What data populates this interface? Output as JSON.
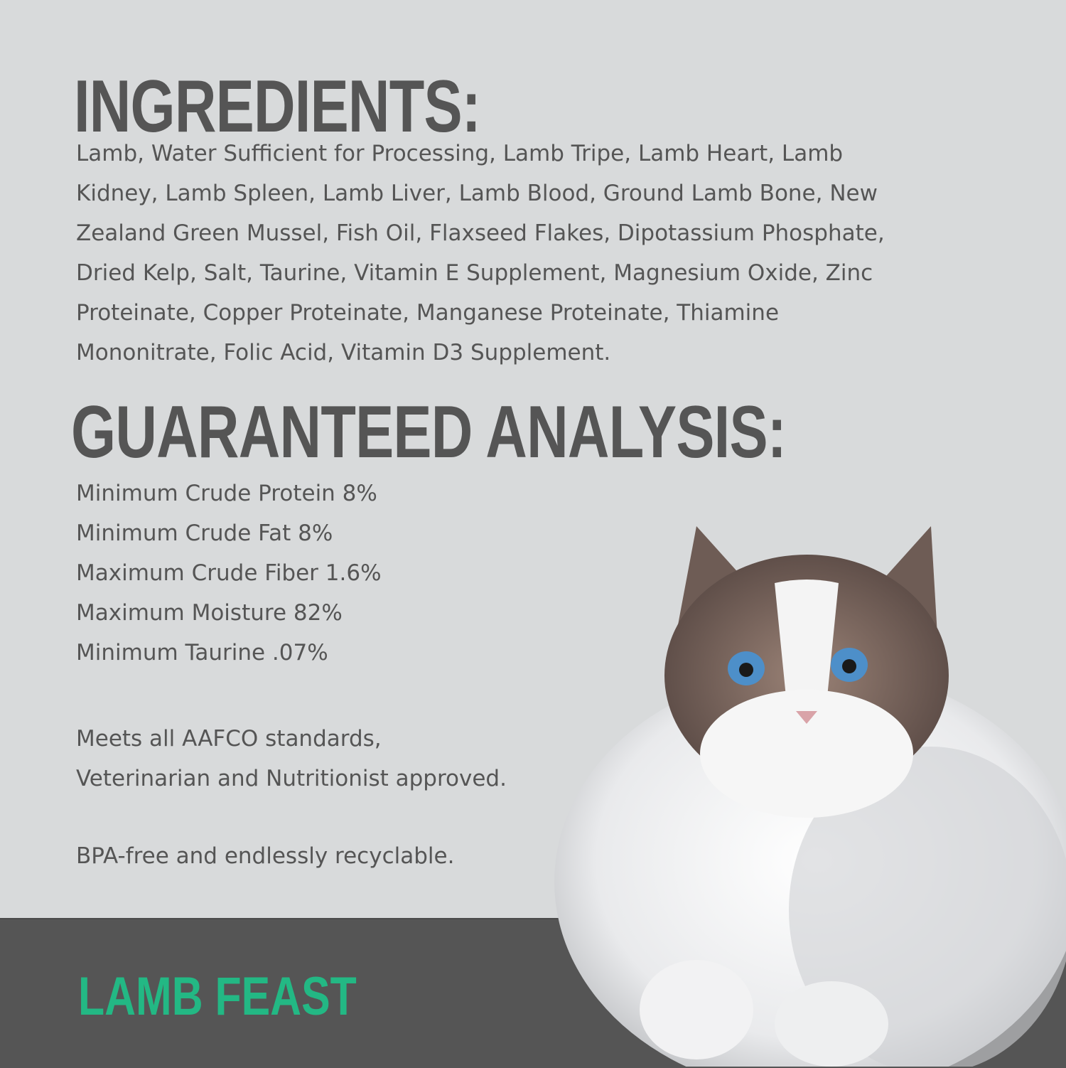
{
  "ingredients": {
    "heading": "INGREDIENTS:",
    "lines": [
      "Lamb, Water Sufficient for Processing, Lamb Tripe, Lamb Heart, Lamb",
      "Kidney, Lamb Spleen, Lamb Liver, Lamb Blood, Ground Lamb Bone, New",
      "Zealand Green Mussel, Fish Oil, Flaxseed Flakes, Dipotassium Phosphate,",
      "Dried Kelp, Salt, Taurine, Vitamin E Supplement, Magnesium Oxide, Zinc",
      "Proteinate, Copper Proteinate, Manganese Proteinate, Thiamine",
      "Mononitrate, Folic Acid, Vitamin D3 Supplement."
    ]
  },
  "analysis": {
    "heading": "GUARANTEED ANALYSIS:",
    "items": [
      "Minimum Crude Protein 8%",
      "Minimum Crude Fat 8%",
      "Maximum Crude Fiber 1.6%",
      "Maximum Moisture 82%",
      "Minimum Taurine .07%"
    ]
  },
  "notes": [
    "Meets all AAFCO standards,",
    "Veterinarian and Nutritionist approved.",
    "BPA-free and endlessly recyclable."
  ],
  "brand": {
    "product_name": "LAMB FEAST"
  },
  "colors": {
    "background": "#d8dadb",
    "text": "#555555",
    "band": "#555555",
    "accent": "#23b884"
  },
  "image": {
    "subject": "cat-photo"
  }
}
